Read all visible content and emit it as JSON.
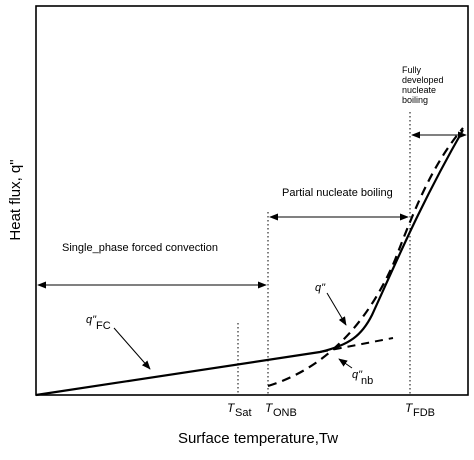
{
  "axes": {
    "ylabel": "Heat flux, q\"",
    "xlabel": "Surface temperature,Tw"
  },
  "regions": {
    "single_phase": "Single_phase forced convection",
    "partial": "Partial nucleate boiling",
    "fully_line1": "Fully",
    "fully_line2": "developed",
    "fully_line3": "nucleate",
    "fully_line4": "boiling"
  },
  "ticks": {
    "tsat_base": "T",
    "tsat_sub": "Sat",
    "tonb_base": "T",
    "tonb_sub": "ONB",
    "tfdb_base": "T",
    "tfdb_sub": "FDB"
  },
  "curves": {
    "q_total": "q\"",
    "q_fc_base": "q\"",
    "q_fc_sub": "FC",
    "q_nb_base": "q\"",
    "q_nb_sub": "nb"
  }
}
